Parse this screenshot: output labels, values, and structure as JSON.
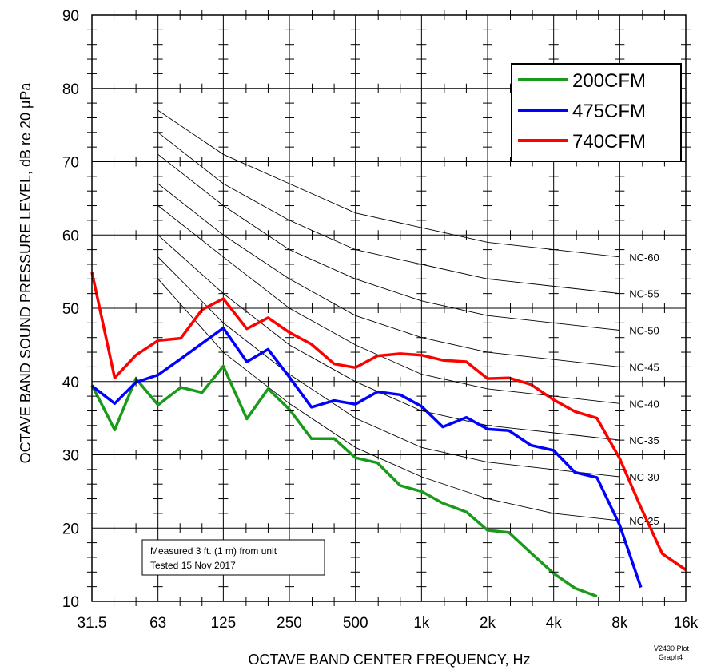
{
  "chart_data": {
    "type": "line",
    "title": "",
    "xlabel": "OCTAVE BAND CENTER FREQUENCY, Hz",
    "ylabel": "OCTAVE BAND SOUND PRESSURE LEVEL, dB re 20 μPa",
    "x_scale": "log2",
    "xlim": [
      31.5,
      16000
    ],
    "ylim": [
      10,
      90
    ],
    "x_ticks": [
      31.5,
      63,
      125,
      250,
      500,
      1000,
      2000,
      4000,
      8000,
      16000
    ],
    "x_tick_labels": [
      "31.5",
      "63",
      "125",
      "250",
      "500",
      "1k",
      "2k",
      "4k",
      "8k",
      "16k"
    ],
    "y_ticks": [
      10,
      20,
      30,
      40,
      50,
      60,
      70,
      80,
      90
    ],
    "grid": true,
    "legend_position": "top-right",
    "x": [
      31.5,
      40,
      50,
      63,
      80,
      100,
      125,
      160,
      200,
      250,
      315,
      400,
      500,
      630,
      800,
      1000,
      1250,
      1600,
      2000,
      2500,
      3150,
      4000,
      5000,
      6300,
      8000,
      10000,
      12500,
      16000
    ],
    "series": [
      {
        "name": "200CFM",
        "color": "#1a9a1a",
        "values": [
          39.5,
          33.4,
          40.4,
          36.8,
          39.2,
          38.5,
          42.1,
          34.9,
          39.0,
          36.2,
          32.2,
          32.2,
          29.6,
          28.9,
          25.8,
          25.0,
          23.4,
          22.2,
          19.7,
          19.4,
          16.6,
          13.8,
          11.8,
          10.7,
          null,
          null,
          null,
          null
        ]
      },
      {
        "name": "475CFM",
        "color": "#0000ff",
        "values": [
          39.4,
          37.0,
          39.9,
          40.9,
          43.1,
          45.2,
          47.3,
          42.7,
          44.4,
          40.6,
          36.5,
          37.4,
          36.9,
          38.6,
          38.2,
          36.6,
          33.8,
          35.1,
          33.5,
          33.3,
          31.3,
          30.6,
          27.6,
          26.9,
          20.4,
          11.9,
          null,
          null
        ]
      },
      {
        "name": "740CFM",
        "color": "#ff0000",
        "values": [
          54.9,
          40.5,
          43.6,
          45.6,
          45.9,
          49.8,
          51.3,
          47.2,
          48.7,
          46.7,
          45.1,
          42.4,
          41.9,
          43.5,
          43.8,
          43.6,
          42.9,
          42.7,
          40.4,
          40.5,
          39.6,
          37.5,
          35.9,
          35.0,
          29.5,
          22.8,
          16.5,
          14.3
        ]
      }
    ],
    "nc_curves": {
      "x": [
        63,
        125,
        250,
        500,
        1000,
        2000,
        4000,
        8000
      ],
      "curves": [
        {
          "label": "NC-60",
          "values": [
            77,
            71,
            67,
            63,
            61,
            59,
            58,
            57
          ]
        },
        {
          "label": "NC-55",
          "values": [
            74,
            67,
            62,
            58,
            56,
            54,
            53,
            52
          ]
        },
        {
          "label": "NC-50",
          "values": [
            71,
            64,
            58,
            54,
            51,
            49,
            48,
            47
          ]
        },
        {
          "label": "NC-45",
          "values": [
            67,
            60,
            54,
            49,
            46,
            44,
            43,
            42
          ]
        },
        {
          "label": "NC-40",
          "values": [
            64,
            57,
            50,
            45,
            41,
            39,
            38,
            37
          ]
        },
        {
          "label": "NC-35",
          "values": [
            60,
            52,
            45,
            40,
            36,
            34,
            33,
            32
          ]
        },
        {
          "label": "NC-30",
          "values": [
            57,
            48,
            41,
            35,
            31,
            29,
            28,
            27
          ]
        },
        {
          "label": "NC-25",
          "values": [
            54,
            44,
            37,
            31,
            27,
            24,
            22,
            21
          ]
        }
      ]
    },
    "annotation_lines": [
      "Measured 3 ft. (1 m) from unit",
      "Tested 15 Nov 2017"
    ],
    "plot_id_lines": [
      "V2430 Plot",
      "Graph4"
    ]
  }
}
